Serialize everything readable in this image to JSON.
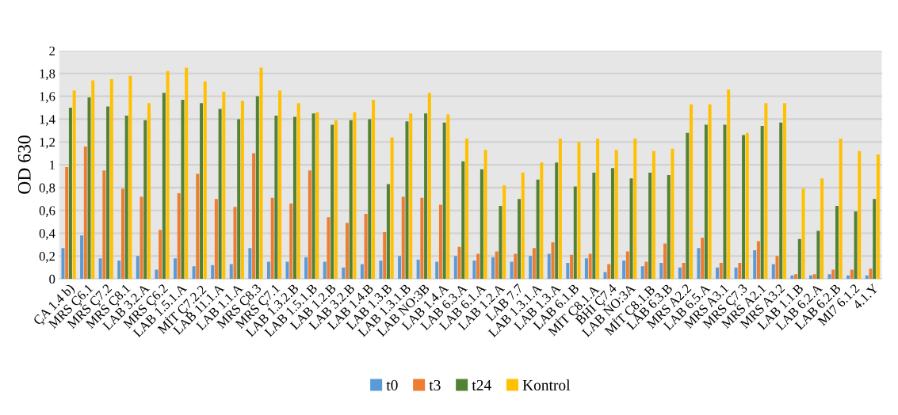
{
  "chart_data": {
    "type": "bar",
    "ylabel": "OD 630",
    "categories": [
      "ÇA 1.4 b)",
      "MRS Ç6.1",
      "MRS Ç7.2",
      "MRS Ç8.1",
      "LAB 3.2.A",
      "MRS Ç6.2",
      "LAB 1.5.1.A",
      "MİT Ç7.2.2",
      "LAB 11.1.A",
      "LAB 1.1.A",
      "MRS Ç8.3",
      "MRS Ç7.1",
      "LAB 1.3.2.B",
      "LAB 1.5.1.B",
      "LAB 1.2.B",
      "LAB 3.2.B",
      "LAB 1.4.B",
      "LAB 1.3.B",
      "LAB 1.3.1.B",
      "LAB NO:3B",
      "LAB 1.4.A",
      "LAB 6.3.A",
      "LAB 6.1.A",
      "LAB 1.2.A",
      "LAB 7.7",
      "LAB 1.3.1.A",
      "LAB 1.3.A",
      "LAB 6.1.B",
      "MİT Ç8.1.A",
      "BHI Ç7.4",
      "LAB NO:3A",
      "MİT Ç8.1.B",
      "LAB 6.3.B",
      "MRS A2.2",
      "LAB 6.5.A",
      "MRS A3.1",
      "MRS Ç7.3",
      "MRS A2.1",
      "MRS A3.2",
      "LAB 1.1.B",
      "LAB 6.2.A",
      "LAB 6.2.B",
      "MI7 6.1.2",
      "4.1.Y"
    ],
    "series": [
      {
        "name": "t0",
        "color": "#5b9bd5",
        "values": [
          0.27,
          0.38,
          0.18,
          0.16,
          0.2,
          0.08,
          0.18,
          0.11,
          0.12,
          0.13,
          0.27,
          0.15,
          0.15,
          0.19,
          0.15,
          0.1,
          0.13,
          0.16,
          0.2,
          0.17,
          0.15,
          0.2,
          0.16,
          0.19,
          0.15,
          0.2,
          0.22,
          0.14,
          0.18,
          0.06,
          0.16,
          0.11,
          0.14,
          0.1,
          0.27,
          0.1,
          0.1,
          0.25,
          0.13,
          0.03,
          0.03,
          0.04,
          0.03,
          0.03
        ]
      },
      {
        "name": "t3",
        "color": "#ed7d31",
        "values": [
          0.98,
          1.16,
          0.95,
          0.79,
          0.72,
          0.43,
          0.75,
          0.92,
          0.7,
          0.63,
          1.1,
          0.71,
          0.66,
          0.95,
          0.54,
          0.49,
          0.57,
          0.41,
          0.72,
          0.71,
          0.65,
          0.28,
          0.22,
          0.24,
          0.22,
          0.27,
          0.32,
          0.21,
          0.22,
          0.13,
          0.24,
          0.15,
          0.31,
          0.14,
          0.36,
          0.14,
          0.14,
          0.33,
          0.2,
          0.04,
          0.04,
          0.08,
          0.08,
          0.09
        ]
      },
      {
        "name": "t24",
        "color": "#548235",
        "values": [
          1.5,
          1.59,
          1.51,
          1.43,
          1.39,
          1.63,
          1.57,
          1.54,
          1.49,
          1.4,
          1.6,
          1.43,
          1.42,
          1.45,
          1.35,
          1.39,
          1.4,
          0.83,
          1.38,
          1.45,
          1.37,
          1.03,
          0.96,
          0.64,
          0.7,
          0.87,
          1.02,
          0.81,
          0.93,
          0.97,
          0.88,
          0.93,
          0.91,
          1.28,
          1.35,
          1.35,
          1.26,
          1.34,
          1.37,
          0.35,
          0.42,
          0.64,
          0.59,
          0.7
        ]
      },
      {
        "name": "Kontrol",
        "color": "#ffc000",
        "values": [
          1.65,
          1.74,
          1.75,
          1.78,
          1.54,
          1.82,
          1.85,
          1.73,
          1.64,
          1.56,
          1.85,
          1.65,
          1.54,
          1.46,
          1.39,
          1.46,
          1.57,
          1.24,
          1.45,
          1.63,
          1.44,
          1.23,
          1.13,
          0.82,
          0.93,
          1.02,
          1.23,
          1.2,
          1.23,
          1.13,
          1.23,
          1.12,
          1.14,
          1.53,
          1.53,
          1.66,
          1.28,
          1.54,
          1.54,
          0.79,
          0.88,
          1.23,
          1.12,
          1.09
        ]
      }
    ],
    "ylim": [
      0,
      2
    ],
    "yticks": [
      0,
      {
        "value": 0.2,
        "label": "0,2"
      },
      {
        "value": 0.4,
        "label": "0,4"
      },
      {
        "value": 0.6,
        "label": "0,6"
      },
      {
        "value": 0.8,
        "label": "0,8"
      },
      1,
      {
        "value": 1.2,
        "label": "1,2"
      },
      {
        "value": 1.4,
        "label": "1,4"
      },
      {
        "value": 1.6,
        "label": "1,6"
      },
      {
        "value": 1.8,
        "label": "1,8"
      },
      2
    ],
    "grid": "y",
    "legend": "bottom"
  }
}
